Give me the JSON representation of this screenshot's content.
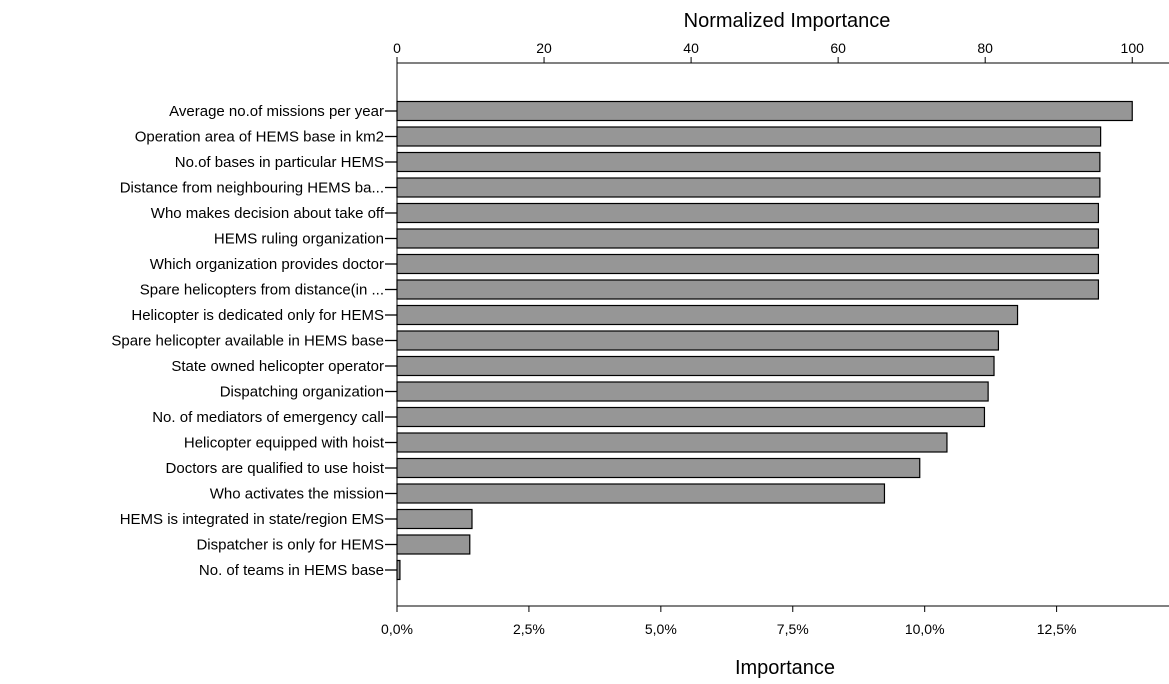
{
  "chart_data": {
    "type": "bar",
    "orientation": "horizontal",
    "top_axis_title": "Normalized Importance",
    "bottom_axis_title": "Importance",
    "top_axis_range": [
      0,
      105
    ],
    "bottom_axis_range": [
      0,
      0.1463
    ],
    "top_ticks": [
      "0",
      "20",
      "40",
      "60",
      "80",
      "100"
    ],
    "bottom_ticks": [
      "0,0%",
      "2,5%",
      "5,0%",
      "7,5%",
      "10,0%",
      "12,5%"
    ],
    "categories": [
      "Average no.of missions per year",
      "Operation area of HEMS base in km2",
      "No.of bases in particular HEMS",
      "Distance from neighbouring HEMS ba...",
      "Who makes decision about take off",
      "HEMS ruling organization",
      "Which organization provides doctor",
      "Spare helicopters from distance(in ...",
      "Helicopter is dedicated only for HEMS",
      "Spare helicopter available in HEMS base",
      "State owned helicopter operator",
      "Dispatching organization",
      "No. of mediators of emergency call",
      "Helicopter equipped with hoist",
      "Doctors are qualified to use hoist",
      "Who activates the mission",
      "HEMS is integrated in state/region EMS",
      "Dispatcher is only for HEMS",
      "No. of teams in HEMS base"
    ],
    "values": [
      100,
      95.7,
      95.6,
      95.6,
      95.4,
      95.4,
      95.4,
      95.4,
      84.4,
      81.8,
      81.2,
      80.4,
      79.9,
      74.8,
      71.1,
      66.3,
      10.2,
      9.9,
      0.4
    ],
    "grid": false,
    "legend": "none"
  }
}
